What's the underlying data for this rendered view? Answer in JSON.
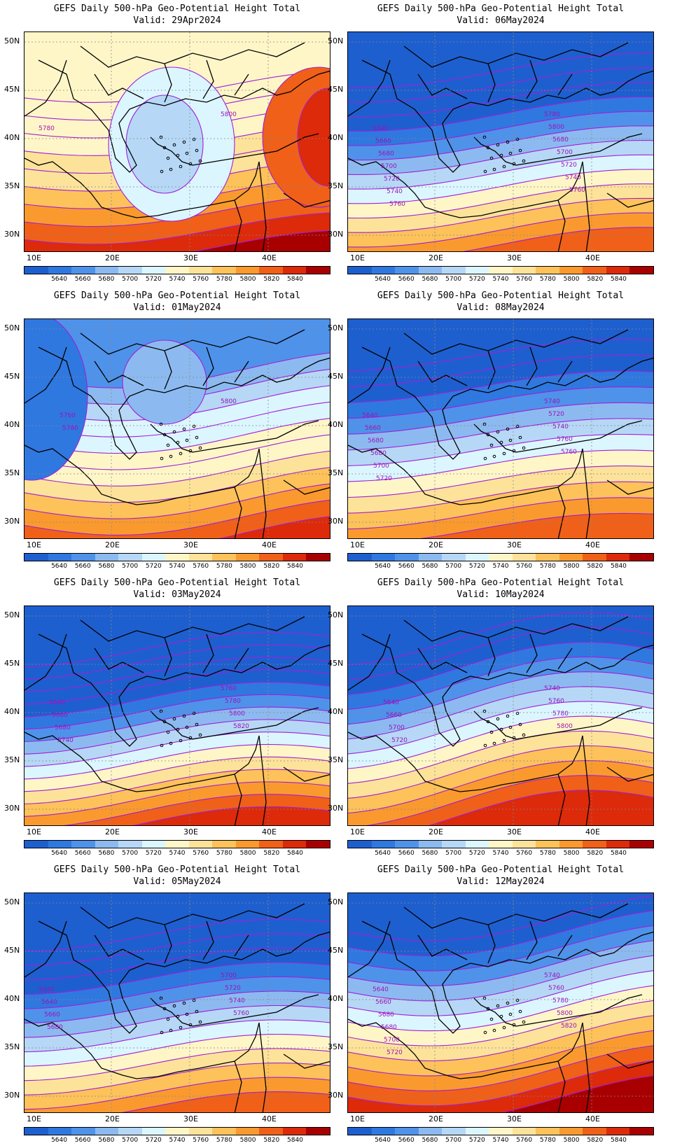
{
  "title_line1": "GEFS Daily 500-hPa Geo-Potential Height Total",
  "palette": [
    "#1e5fcf",
    "#2f78e0",
    "#4f92ea",
    "#8cbaf0",
    "#b6d8f6",
    "#dcf6ff",
    "#fff6c8",
    "#fde39a",
    "#fdc25a",
    "#fa9a2e",
    "#f06018",
    "#dc2a0a",
    "#a80000"
  ],
  "colorbar_labels": [
    "5640",
    "5660",
    "5680",
    "5700",
    "5720",
    "5740",
    "5760",
    "5780",
    "5800",
    "5820",
    "5840"
  ],
  "lat_labels": [
    "50N",
    "45N",
    "40N",
    "35N",
    "30N"
  ],
  "lon_labels": [
    "10E",
    "20E",
    "30E",
    "40E"
  ],
  "panels": [
    {
      "valid": "Valid: 29Apr2024",
      "contour_labels": [
        "5780",
        "5800"
      ]
    },
    {
      "valid": "Valid: 06May2024",
      "contour_labels": [
        "5640",
        "5660",
        "5680",
        "5700",
        "5720",
        "5740",
        "5760",
        "5780",
        "5800",
        "5680",
        "5700",
        "5720",
        "5740",
        "5760"
      ]
    },
    {
      "valid": "Valid: 01May2024",
      "contour_labels": [
        "5760",
        "5780",
        "5800"
      ]
    },
    {
      "valid": "Valid: 08May2024",
      "contour_labels": [
        "5640",
        "5660",
        "5680",
        "5680",
        "5700",
        "5720",
        "5740",
        "5720",
        "5740",
        "5760",
        "5760"
      ]
    },
    {
      "valid": "Valid: 03May2024",
      "contour_labels": [
        "5640",
        "5660",
        "5680",
        "5740",
        "5760",
        "5780",
        "5800",
        "5820"
      ]
    },
    {
      "valid": "Valid: 10May2024",
      "contour_labels": [
        "5640",
        "5660",
        "5700",
        "5720",
        "5740",
        "5760",
        "5780",
        "5800"
      ]
    },
    {
      "valid": "Valid: 05May2024",
      "contour_labels": [
        "5640",
        "5640",
        "5660",
        "5680",
        "5700",
        "5720",
        "5740",
        "5760"
      ]
    },
    {
      "valid": "Valid: 12May2024",
      "contour_labels": [
        "5640",
        "5660",
        "5680",
        "5680",
        "5700",
        "5720",
        "5740",
        "5760",
        "5780",
        "5800",
        "5820"
      ]
    }
  ]
}
